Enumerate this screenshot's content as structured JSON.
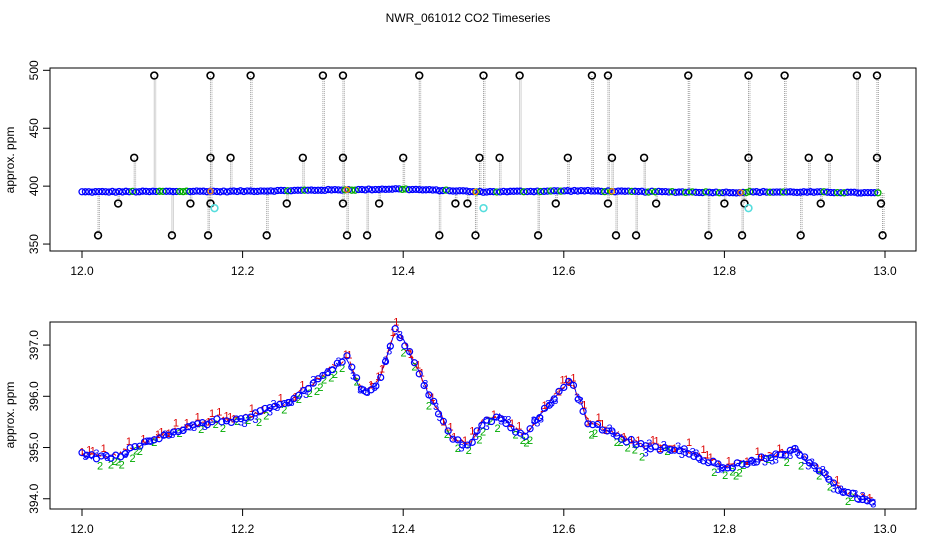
{
  "title": "NWR_061012  CO2 Timeseries",
  "colors": {
    "blue": "#0000ff",
    "green": "#00aa00",
    "red": "#dd0000",
    "cyan": "#55dddd",
    "gray": "#9a9a9a"
  },
  "chart_data": [
    {
      "type": "scatter",
      "panel": "top",
      "title": "",
      "xlabel": "",
      "ylabel": "approx. ppm",
      "xlim": [
        12.0,
        13.0
      ],
      "ylim": [
        344,
        502
      ],
      "xticks": [
        "12.0",
        "12.2",
        "12.4",
        "12.6",
        "12.8",
        "13.0"
      ],
      "yticks": [
        "350",
        "400",
        "450",
        "500"
      ],
      "grid": false,
      "baseline": [
        [
          12.0,
          395.0
        ],
        [
          12.16,
          395.6
        ],
        [
          12.17,
          395.3
        ],
        [
          12.33,
          396.9
        ],
        [
          12.34,
          396.8
        ],
        [
          12.39,
          397.6
        ],
        [
          12.48,
          395.6
        ],
        [
          12.49,
          395.0
        ],
        [
          12.62,
          396.0
        ],
        [
          12.66,
          395.5
        ],
        [
          12.67,
          395.4
        ],
        [
          12.82,
          394.5
        ],
        [
          12.83,
          395.0
        ],
        [
          12.92,
          394.8
        ],
        [
          13.0,
          394.0
        ]
      ],
      "spikes_high": [
        12.09,
        12.16,
        12.21,
        12.3,
        12.325,
        12.42,
        12.5,
        12.545,
        12.635,
        12.655,
        12.755,
        12.83,
        12.875,
        12.965,
        12.99
      ],
      "spikes_425": [
        12.065,
        12.16,
        12.185,
        12.275,
        12.325,
        12.4,
        12.495,
        12.52,
        12.605,
        12.66,
        12.7,
        12.83,
        12.905,
        12.93,
        12.99
      ],
      "spikes_385": [
        12.045,
        12.135,
        12.16,
        12.255,
        12.325,
        12.37,
        12.465,
        12.48,
        12.59,
        12.655,
        12.715,
        12.8,
        12.825,
        12.92,
        12.995
      ],
      "spikes_357": [
        12.02,
        12.112,
        12.157,
        12.23,
        12.33,
        12.355,
        12.445,
        12.49,
        12.568,
        12.665,
        12.69,
        12.78,
        12.822,
        12.895,
        12.997
      ],
      "cyan_points": [
        [
          12.165,
          381.0
        ],
        [
          12.5,
          381.0
        ],
        [
          12.83,
          381.0
        ]
      ]
    },
    {
      "type": "scatter",
      "panel": "bottom",
      "title": "",
      "xlabel": "",
      "ylabel": "approx. ppm",
      "xlim": [
        12.0,
        13.0
      ],
      "ylim": [
        393.8,
        397.45
      ],
      "xticks": [
        "12.0",
        "12.2",
        "12.4",
        "12.6",
        "12.8",
        "13.0"
      ],
      "yticks": [
        "394.0",
        "395.0",
        "396.0",
        "397.0"
      ],
      "grid": false,
      "point_labels": [
        "1",
        "2",
        "3"
      ],
      "line_styles": [
        "solid",
        "dashed"
      ],
      "trend": [
        [
          12.0,
          394.85
        ],
        [
          12.04,
          394.8
        ],
        [
          12.1,
          395.25
        ],
        [
          12.16,
          395.5
        ],
        [
          12.2,
          395.55
        ],
        [
          12.26,
          395.9
        ],
        [
          12.3,
          396.4
        ],
        [
          12.33,
          396.75
        ],
        [
          12.35,
          396.05
        ],
        [
          12.37,
          396.3
        ],
        [
          12.39,
          397.3
        ],
        [
          12.405,
          396.95
        ],
        [
          12.43,
          396.1
        ],
        [
          12.46,
          395.2
        ],
        [
          12.48,
          395.0
        ],
        [
          12.5,
          395.5
        ],
        [
          12.52,
          395.6
        ],
        [
          12.55,
          395.2
        ],
        [
          12.6,
          396.2
        ],
        [
          12.61,
          396.3
        ],
        [
          12.63,
          395.5
        ],
        [
          12.7,
          395.0
        ],
        [
          12.75,
          394.95
        ],
        [
          12.8,
          394.6
        ],
        [
          12.89,
          394.95
        ],
        [
          12.95,
          394.1
        ],
        [
          12.99,
          393.95
        ]
      ]
    }
  ]
}
